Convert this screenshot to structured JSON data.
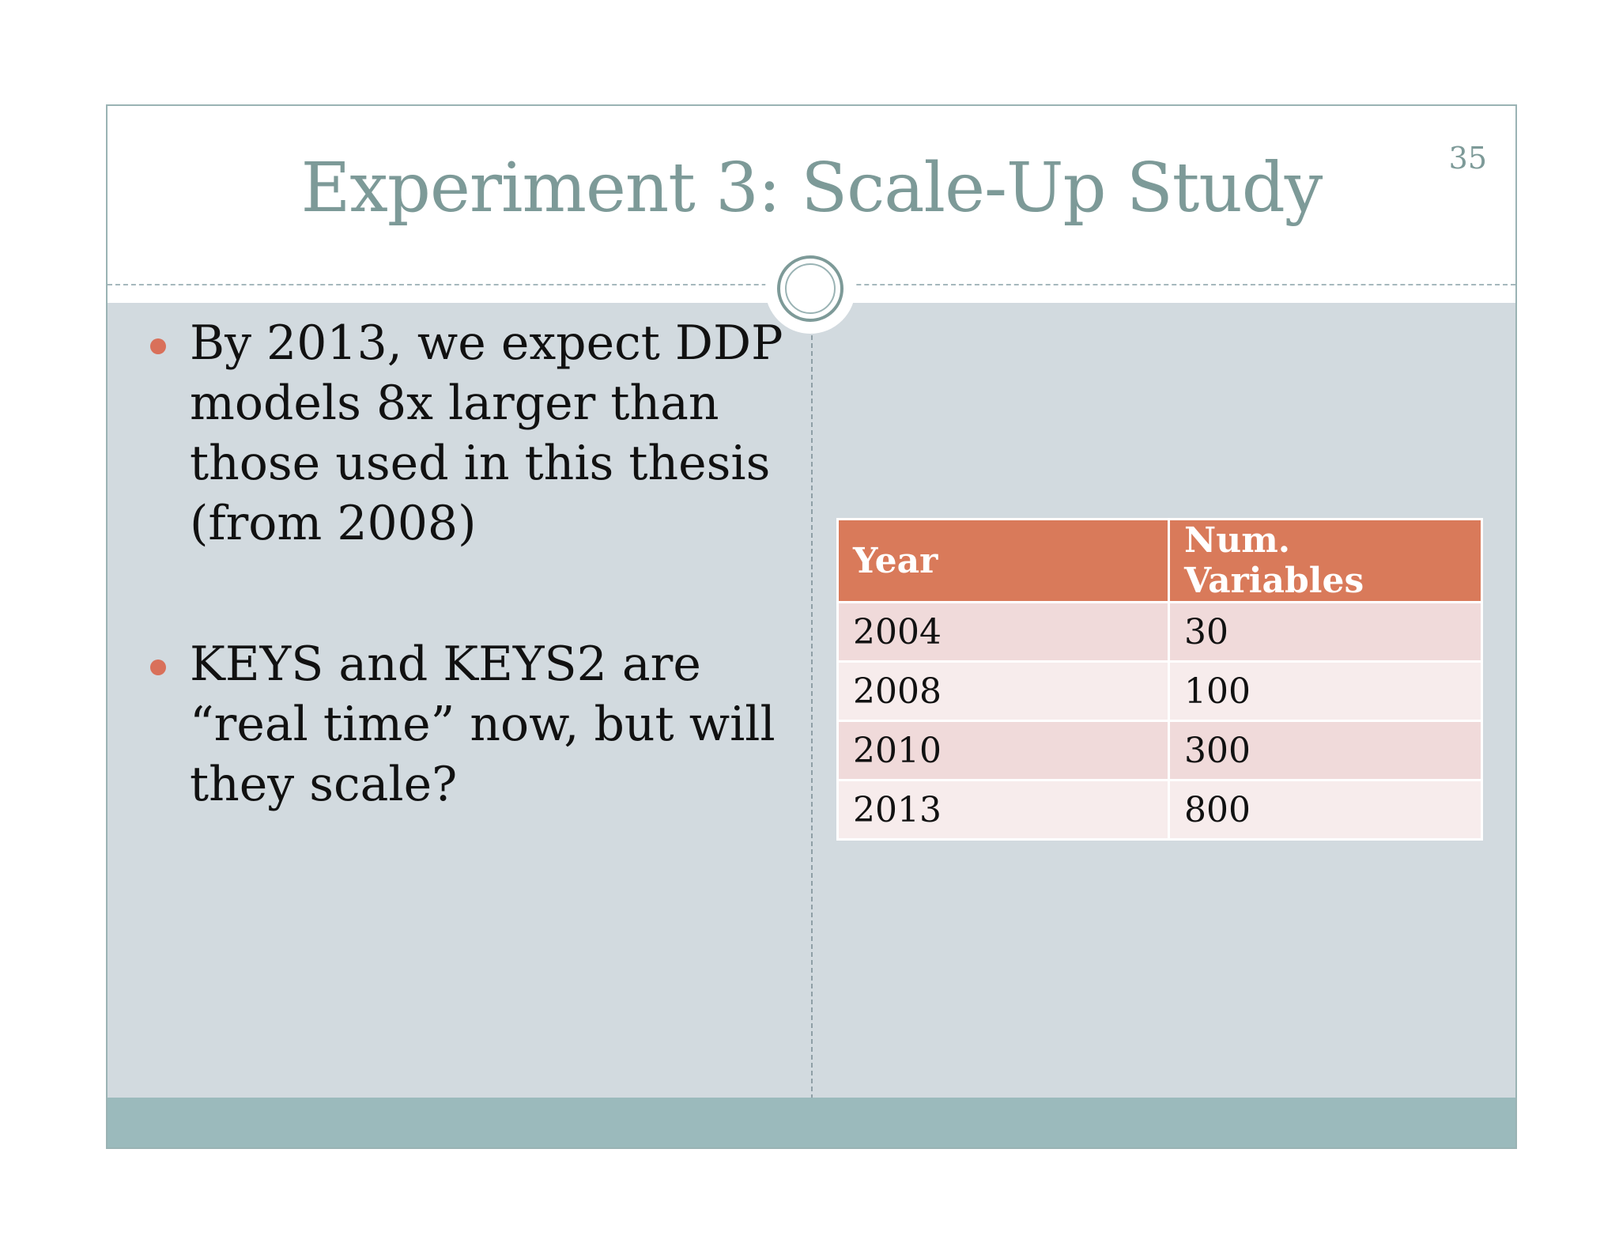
{
  "slide": {
    "title": "Experiment 3: Scale-Up Study",
    "page_number": "35"
  },
  "bullets": [
    "By 2013, we expect DDP models 8x larger than those used in this thesis (from 2008)",
    "KEYS and KEYS2 are “real time” now, but will they scale?"
  ],
  "table": {
    "headers": [
      "Year",
      "Num. Variables"
    ],
    "rows": [
      [
        "2004",
        "30"
      ],
      [
        "2008",
        "100"
      ],
      [
        "2010",
        "300"
      ],
      [
        "2013",
        "800"
      ]
    ]
  },
  "colors": {
    "title": "#7d9a98",
    "bullet_dot": "#d9705a",
    "table_header": "#d97a5a",
    "body_background": "#d2dadf",
    "footer_band": "#9bbabc"
  }
}
